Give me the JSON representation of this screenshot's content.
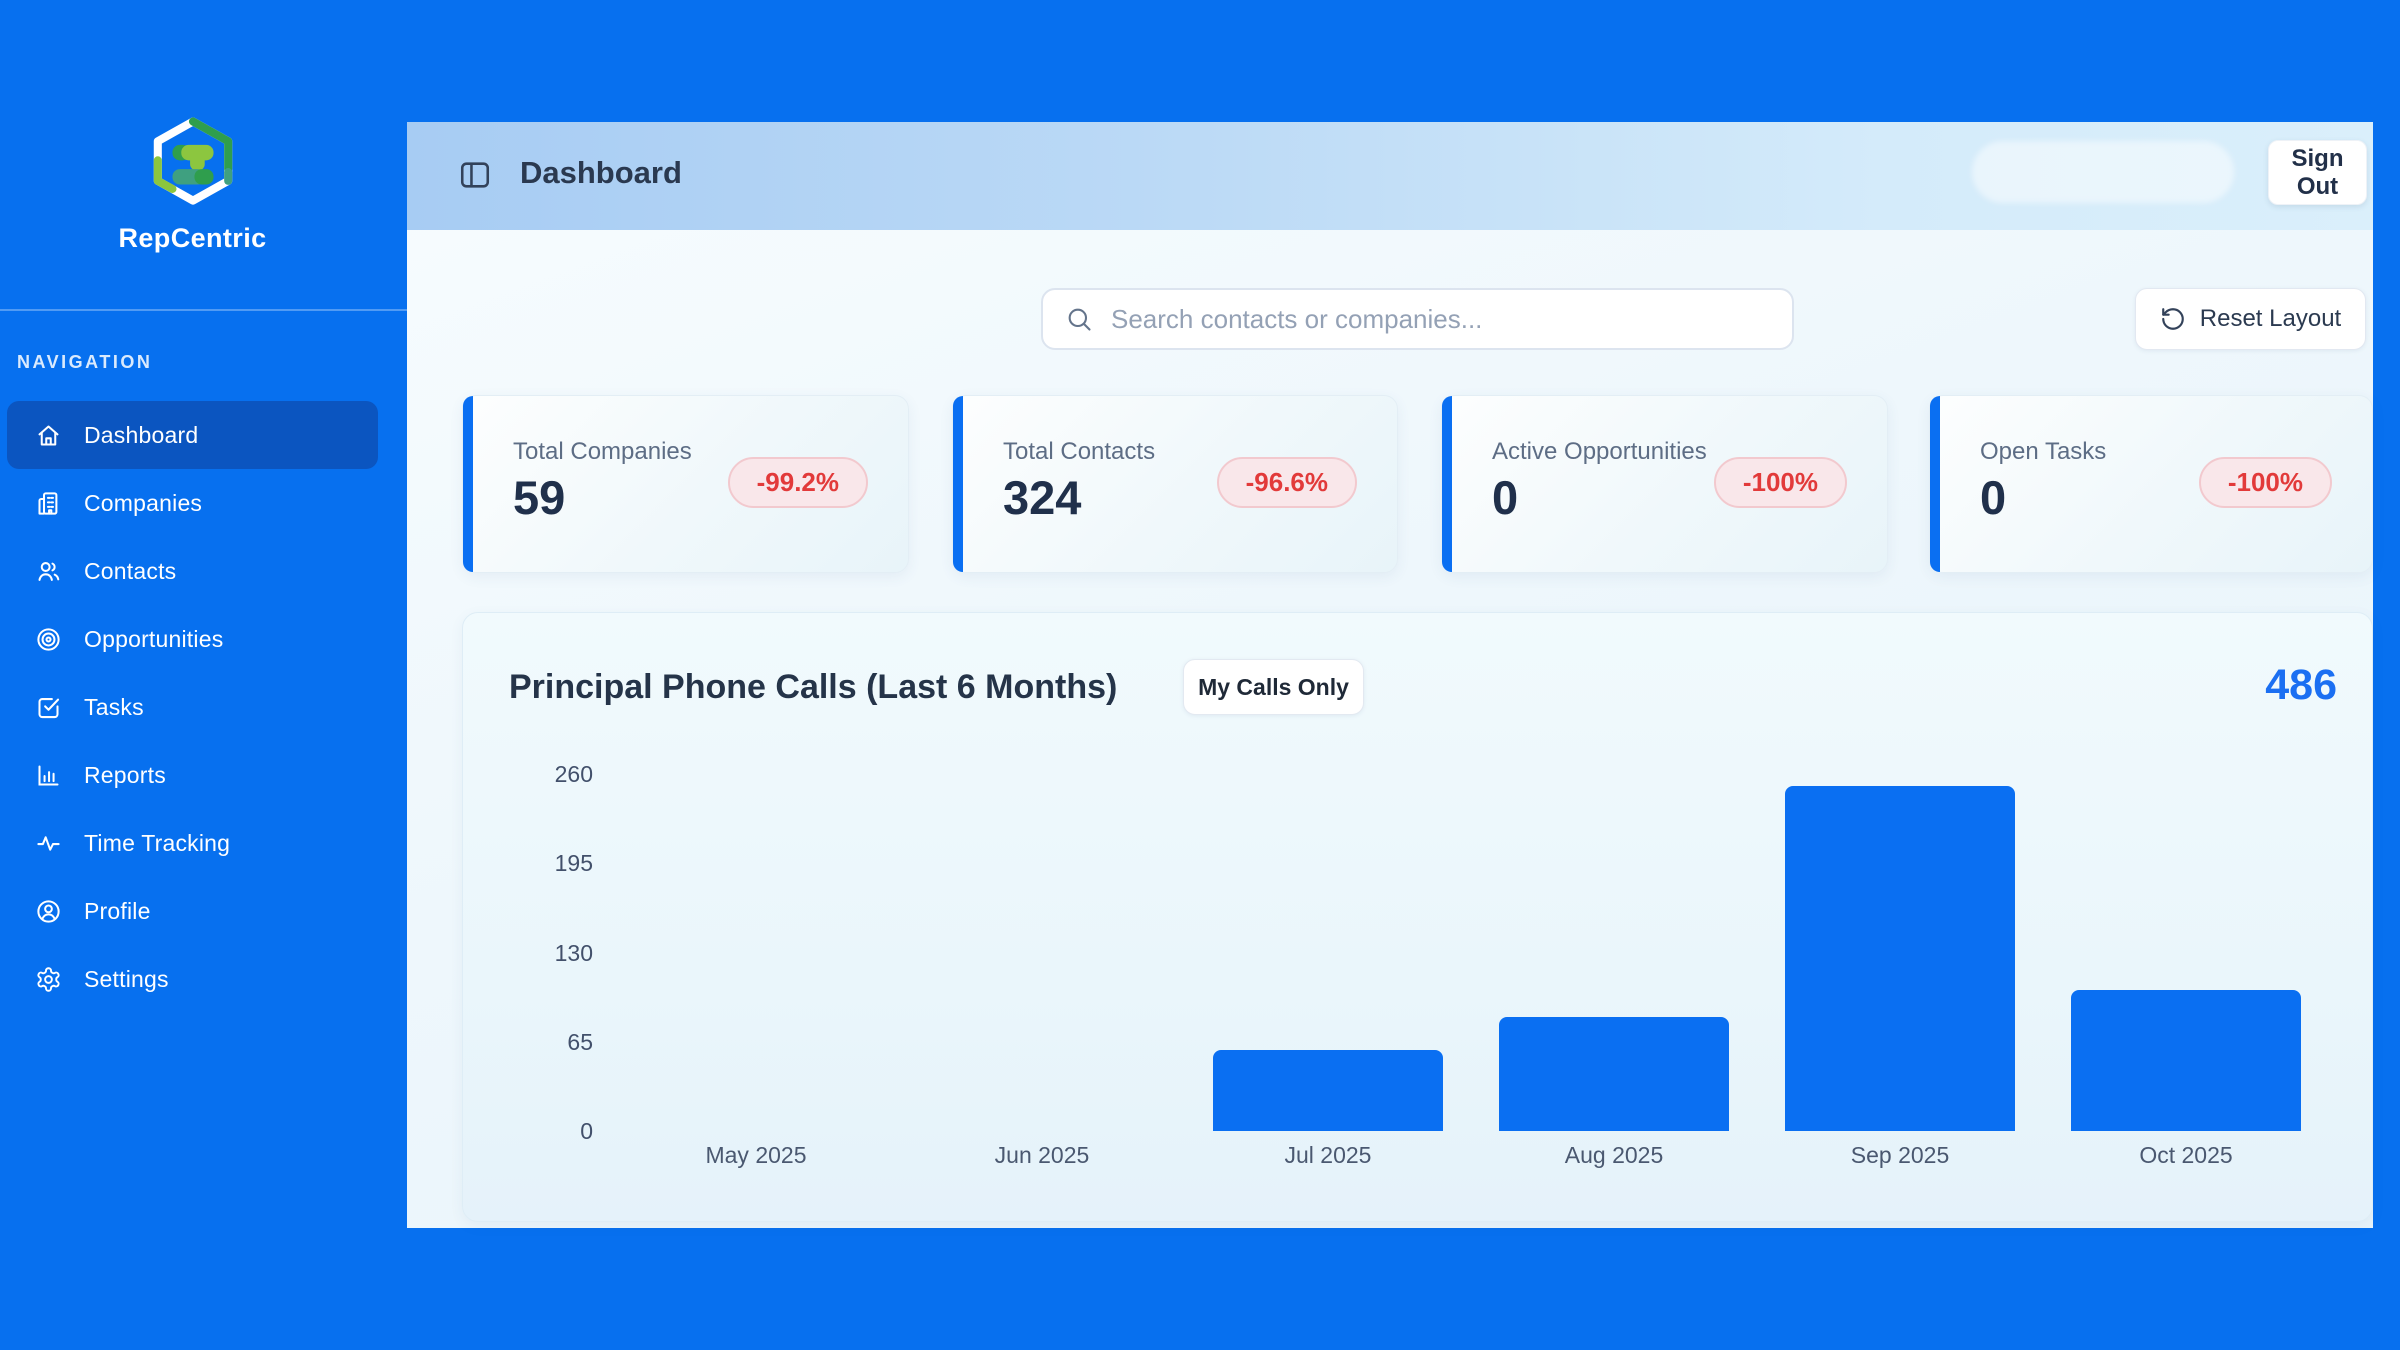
{
  "brand": {
    "name": "RepCentric"
  },
  "sidebar": {
    "section_label": "NAVIGATION",
    "items": [
      {
        "label": "Dashboard",
        "icon": "home-icon",
        "active": true
      },
      {
        "label": "Companies",
        "icon": "building-icon",
        "active": false
      },
      {
        "label": "Contacts",
        "icon": "users-icon",
        "active": false
      },
      {
        "label": "Opportunities",
        "icon": "target-icon",
        "active": false
      },
      {
        "label": "Tasks",
        "icon": "check-square-icon",
        "active": false
      },
      {
        "label": "Reports",
        "icon": "bar-chart-icon",
        "active": false
      },
      {
        "label": "Time Tracking",
        "icon": "activity-icon",
        "active": false
      },
      {
        "label": "Profile",
        "icon": "user-circle-icon",
        "active": false
      },
      {
        "label": "Settings",
        "icon": "gear-icon",
        "active": false
      }
    ]
  },
  "header": {
    "title": "Dashboard",
    "sign_out_label": "Sign Out"
  },
  "toolbar": {
    "search_placeholder": "Search contacts or companies...",
    "reset_layout_label": "Reset Layout"
  },
  "stats": [
    {
      "label": "Total Companies",
      "value": "59",
      "change": "-99.2%"
    },
    {
      "label": "Total Contacts",
      "value": "324",
      "change": "-96.6%"
    },
    {
      "label": "Active Opportunities",
      "value": "0",
      "change": "-100%"
    },
    {
      "label": "Open Tasks",
      "value": "0",
      "change": "-100%"
    }
  ],
  "chart": {
    "title": "Principal Phone Calls (Last 6 Months)",
    "filter_label": "My Calls Only",
    "total": "486"
  },
  "chart_data": {
    "type": "bar",
    "title": "Principal Phone Calls (Last 6 Months)",
    "categories": [
      "May 2025",
      "Jun 2025",
      "Jul 2025",
      "Aug 2025",
      "Sep 2025",
      "Oct 2025"
    ],
    "values": [
      0,
      0,
      59,
      83,
      251,
      103
    ],
    "total_label": 486,
    "yticks": [
      0,
      65,
      130,
      195,
      260
    ],
    "ylim": [
      0,
      260
    ],
    "xlabel": "",
    "ylabel": "",
    "grid": false,
    "legend": "none",
    "bar_color": "#0a6ff2"
  },
  "colors": {
    "page_blue": "#0770ef",
    "active_nav_blue": "#0b55c0",
    "accent_blue": "#0a6ff2",
    "total_text_blue": "#1b6ff2",
    "badge_bg": "#f9e7ea",
    "badge_text": "#e23a3a",
    "logo_green_dark": "#2f9e4d",
    "logo_green_lime": "#8cc63f",
    "logo_green_teal": "#3fa080"
  }
}
